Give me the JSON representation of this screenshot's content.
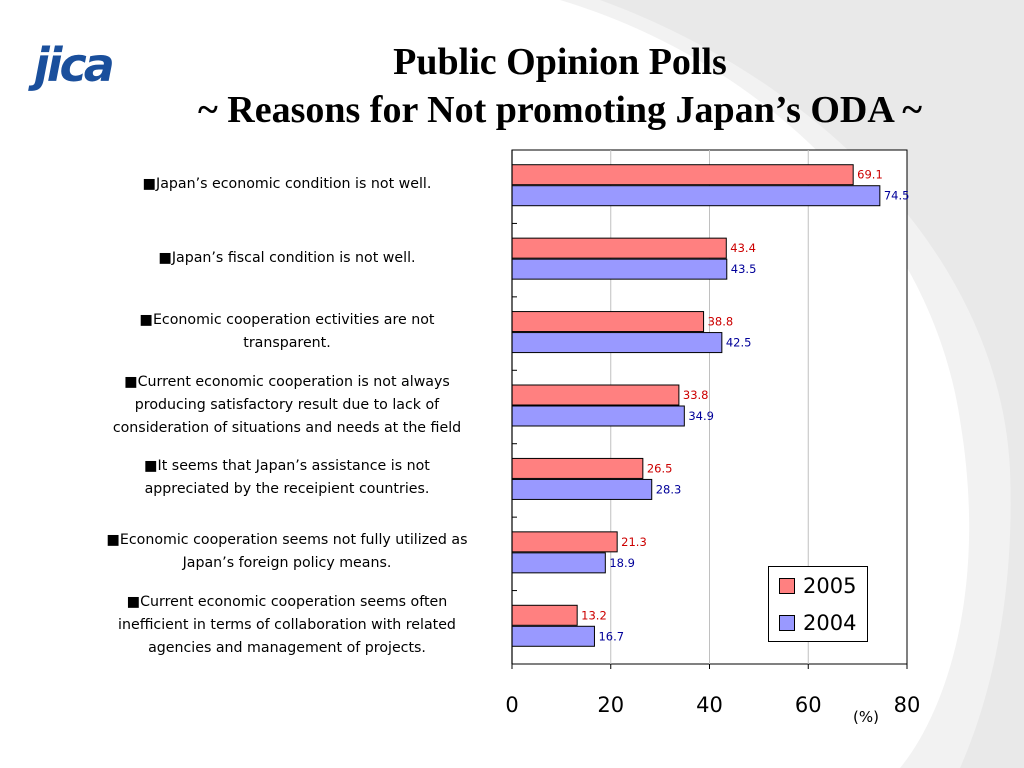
{
  "logo": {
    "text": "jica"
  },
  "title": {
    "line1": "Public Opinion Polls",
    "line2": "~ Reasons for Not promoting Japan’s ODA ~"
  },
  "colors": {
    "series_2005": "#ff8080",
    "series_2004": "#9999ff",
    "label_2005": "#cc0000",
    "label_2004": "#000099",
    "logo": "#1a4f9c"
  },
  "chart_data": {
    "type": "bar",
    "orientation": "horizontal",
    "categories": [
      "■Japan’s economic condition is not well.",
      "■Japan’s fiscal condition is not well.",
      "■Economic cooperation ectivities are not\ntransparent.",
      "■Current economic cooperation is not always\nproducing satisfactory result due to lack of\nconsideration of situations and needs at the field",
      "■It seems that Japan’s assistance is not\nappreciated by the receipient countries.",
      "■Economic cooperation seems not fully utilized as\nJapan’s foreign policy means.",
      "■Current economic cooperation seems often\ninefficient in terms of collaboration with related\nagencies and management of projects."
    ],
    "series": [
      {
        "name": "2005",
        "values": [
          69.1,
          43.4,
          38.8,
          33.8,
          26.5,
          21.3,
          13.2
        ],
        "labels": [
          "69.1",
          "43.4",
          "38.8",
          "33.8",
          "26.5",
          "21.3",
          "13.2"
        ]
      },
      {
        "name": "2004",
        "values": [
          74.5,
          43.5,
          42.5,
          34.9,
          28.3,
          18.9,
          16.7
        ],
        "labels": [
          "74.5",
          "43.5",
          "42.5",
          "34.9",
          "28.3",
          "18.9",
          "16.7"
        ]
      }
    ],
    "xlim": [
      0,
      80
    ],
    "xticks": [
      "0",
      "20",
      "40",
      "60",
      "80"
    ],
    "xlabel": "(%)",
    "grid": true,
    "legend_position": "bottom-right"
  }
}
